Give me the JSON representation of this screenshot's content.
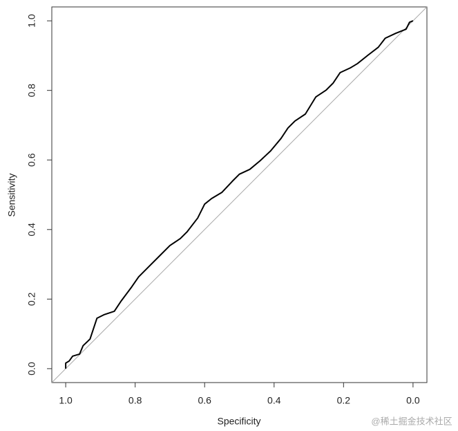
{
  "chart_data": {
    "type": "line",
    "x_label": "Specificity",
    "y_label": "Sensitivity",
    "watermark": "@稀土掘金技术社区",
    "x": [
      1,
      1,
      0.99,
      0.98,
      0.96,
      0.95,
      0.93,
      0.91,
      0.89,
      0.86,
      0.84,
      0.81,
      0.79,
      0.76,
      0.73,
      0.7,
      0.67,
      0.65,
      0.62,
      0.6,
      0.58,
      0.55,
      0.52,
      0.5,
      0.47,
      0.44,
      0.41,
      0.38,
      0.36,
      0.34,
      0.31,
      0.28,
      0.25,
      0.23,
      0.21,
      0.18,
      0.16,
      0.13,
      0.1,
      0.08,
      0.05,
      0.02,
      0.01,
      0
    ],
    "values": [
      0,
      0.016,
      0.022,
      0.036,
      0.042,
      0.066,
      0.085,
      0.145,
      0.155,
      0.165,
      0.195,
      0.235,
      0.264,
      0.294,
      0.324,
      0.354,
      0.374,
      0.394,
      0.433,
      0.473,
      0.489,
      0.507,
      0.539,
      0.559,
      0.573,
      0.598,
      0.626,
      0.662,
      0.692,
      0.712,
      0.732,
      0.781,
      0.801,
      0.821,
      0.851,
      0.865,
      0.877,
      0.901,
      0.924,
      0.95,
      0.964,
      0.976,
      0.996,
      1
    ],
    "color": "#000000",
    "reference_color": "#aaaaaa",
    "xlim": [
      1.04,
      -0.04
    ],
    "ylim": [
      -0.04,
      1.04
    ],
    "xticks": [
      {
        "value": 1,
        "label": "1.0"
      },
      {
        "value": 0.8,
        "label": "0.8"
      },
      {
        "value": 0.6,
        "label": "0.6"
      },
      {
        "value": 0.4,
        "label": "0.4"
      },
      {
        "value": 0.2,
        "label": "0.2"
      },
      {
        "value": 0,
        "label": "0.0"
      }
    ],
    "yticks": [
      {
        "value": 0,
        "label": "0.0"
      },
      {
        "value": 0.2,
        "label": "0.2"
      },
      {
        "value": 0.4,
        "label": "0.4"
      },
      {
        "value": 0.6,
        "label": "0.6"
      },
      {
        "value": 0.8,
        "label": "0.8"
      },
      {
        "value": 1,
        "label": "1.0"
      }
    ]
  }
}
